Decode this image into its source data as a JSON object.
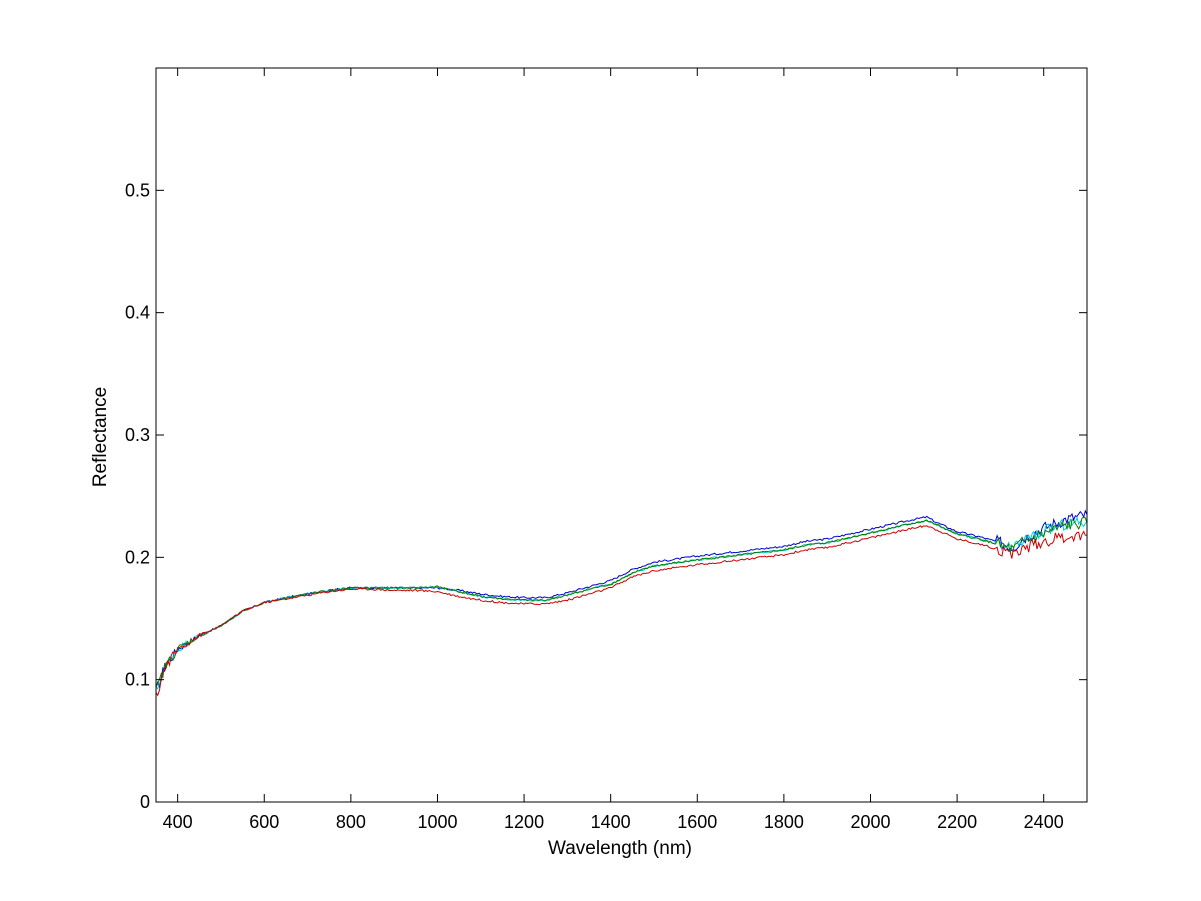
{
  "chart_data": {
    "type": "line",
    "xlabel": "Wavelength (nm)",
    "ylabel": "Reflectance",
    "xlim": [
      350,
      2500
    ],
    "ylim": [
      0,
      0.6
    ],
    "xticks": [
      400,
      600,
      800,
      1000,
      1200,
      1400,
      1600,
      1800,
      2000,
      2200,
      2400
    ],
    "xtick_labels": [
      "400",
      "600",
      "800",
      "1000",
      "1200",
      "1400",
      "1600",
      "1800",
      "2000",
      "2200",
      "2400"
    ],
    "yticks": [
      0,
      0.1,
      0.2,
      0.3,
      0.4,
      0.5
    ],
    "ytick_labels": [
      "0",
      "0.1",
      "0.2",
      "0.3",
      "0.4",
      "0.5"
    ],
    "grid": false,
    "legend": "none",
    "series": [
      {
        "color": "#0000cc",
        "x": [
          350,
          370,
          400,
          450,
          500,
          550,
          600,
          650,
          700,
          750,
          800,
          850,
          900,
          950,
          1000,
          1050,
          1100,
          1150,
          1200,
          1250,
          1300,
          1350,
          1400,
          1450,
          1500,
          1600,
          1700,
          1800,
          1850,
          1900,
          1950,
          2000,
          2050,
          2100,
          2130,
          2150,
          2200,
          2250,
          2300,
          2330,
          2350,
          2400,
          2450,
          2500
        ],
        "y": [
          0.09,
          0.11,
          0.125,
          0.136,
          0.144,
          0.156,
          0.163,
          0.167,
          0.17,
          0.173,
          0.175,
          0.175,
          0.175,
          0.175,
          0.175,
          0.173,
          0.17,
          0.168,
          0.167,
          0.167,
          0.171,
          0.176,
          0.181,
          0.19,
          0.196,
          0.201,
          0.205,
          0.209,
          0.213,
          0.215,
          0.219,
          0.223,
          0.227,
          0.231,
          0.233,
          0.229,
          0.221,
          0.217,
          0.212,
          0.208,
          0.215,
          0.224,
          0.231,
          0.235
        ]
      },
      {
        "color": "#00cccc",
        "x": [
          350,
          370,
          400,
          450,
          500,
          550,
          600,
          650,
          700,
          750,
          800,
          850,
          900,
          950,
          1000,
          1050,
          1100,
          1150,
          1200,
          1250,
          1300,
          1350,
          1400,
          1450,
          1500,
          1600,
          1700,
          1800,
          1850,
          1900,
          1950,
          2000,
          2050,
          2100,
          2130,
          2150,
          2200,
          2250,
          2300,
          2330,
          2350,
          2400,
          2450,
          2500
        ],
        "y": [
          0.09,
          0.11,
          0.125,
          0.136,
          0.144,
          0.156,
          0.163,
          0.167,
          0.17,
          0.173,
          0.175,
          0.175,
          0.175,
          0.175,
          0.176,
          0.172,
          0.168,
          0.166,
          0.165,
          0.165,
          0.169,
          0.174,
          0.178,
          0.187,
          0.193,
          0.198,
          0.202,
          0.206,
          0.21,
          0.212,
          0.216,
          0.22,
          0.224,
          0.228,
          0.23,
          0.227,
          0.219,
          0.215,
          0.21,
          0.206,
          0.213,
          0.221,
          0.227,
          0.229
        ]
      },
      {
        "color": "#008000",
        "x": [
          350,
          370,
          400,
          450,
          500,
          550,
          600,
          650,
          700,
          750,
          800,
          850,
          900,
          950,
          1000,
          1050,
          1100,
          1150,
          1200,
          1250,
          1300,
          1350,
          1400,
          1450,
          1500,
          1600,
          1700,
          1800,
          1850,
          1900,
          1950,
          2000,
          2050,
          2100,
          2130,
          2150,
          2200,
          2250,
          2300,
          2330,
          2350,
          2400,
          2450,
          2500
        ],
        "y": [
          0.09,
          0.11,
          0.125,
          0.136,
          0.144,
          0.156,
          0.163,
          0.167,
          0.17,
          0.173,
          0.175,
          0.175,
          0.175,
          0.175,
          0.176,
          0.172,
          0.168,
          0.166,
          0.165,
          0.165,
          0.169,
          0.174,
          0.178,
          0.187,
          0.193,
          0.198,
          0.202,
          0.206,
          0.21,
          0.212,
          0.216,
          0.22,
          0.224,
          0.228,
          0.23,
          0.227,
          0.219,
          0.215,
          0.21,
          0.206,
          0.212,
          0.219,
          0.226,
          0.228
        ]
      },
      {
        "color": "#cc0000",
        "x": [
          350,
          370,
          400,
          450,
          500,
          550,
          600,
          650,
          700,
          750,
          800,
          850,
          900,
          950,
          1000,
          1050,
          1100,
          1150,
          1200,
          1250,
          1300,
          1350,
          1400,
          1450,
          1500,
          1600,
          1700,
          1800,
          1850,
          1900,
          1950,
          2000,
          2050,
          2100,
          2130,
          2150,
          2200,
          2250,
          2300,
          2330,
          2350,
          2400,
          2450,
          2500
        ],
        "y": [
          0.085,
          0.11,
          0.125,
          0.136,
          0.144,
          0.156,
          0.163,
          0.166,
          0.169,
          0.172,
          0.174,
          0.174,
          0.173,
          0.173,
          0.172,
          0.168,
          0.165,
          0.163,
          0.162,
          0.162,
          0.165,
          0.17,
          0.175,
          0.184,
          0.189,
          0.194,
          0.198,
          0.202,
          0.206,
          0.208,
          0.212,
          0.216,
          0.22,
          0.224,
          0.226,
          0.223,
          0.215,
          0.211,
          0.206,
          0.202,
          0.207,
          0.213,
          0.217,
          0.218
        ]
      }
    ]
  }
}
